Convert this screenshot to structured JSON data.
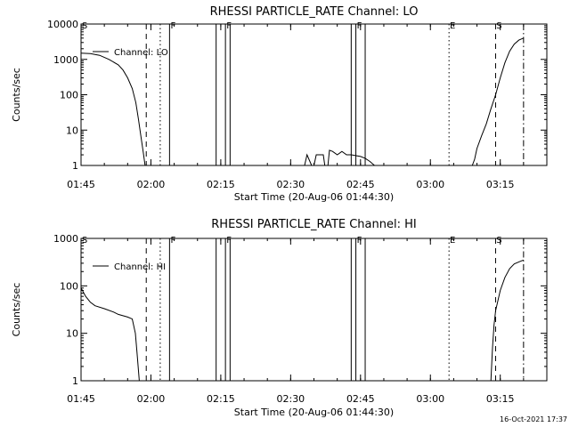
{
  "footer": {
    "timestamp": "16-Oct-2021 17:37"
  },
  "chart_data": [
    {
      "type": "line",
      "title": "RHESSI PARTICLE_RATE Channel: LO",
      "xlabel": "Start Time (20-Aug-06 01:44:30)",
      "ylabel": "Counts/sec",
      "yscale": "log",
      "ylim": [
        1,
        10000
      ],
      "xlim": [
        "01:45",
        "03:25"
      ],
      "xticks": [
        "01:45",
        "02:00",
        "02:15",
        "02:30",
        "02:45",
        "03:00",
        "03:15"
      ],
      "yticks": [
        "1",
        "10",
        "100",
        "1000",
        "10000"
      ],
      "legend": {
        "label": "Channel: LO",
        "placement": "top-left"
      },
      "events": [
        {
          "label": "S",
          "time": "01:45",
          "style": "dashdot"
        },
        {
          "label": "",
          "time": "01:59",
          "style": "dashed"
        },
        {
          "label": "",
          "time": "02:02",
          "style": "dotted"
        },
        {
          "label": "F",
          "time": "02:04",
          "style": "solid"
        },
        {
          "label": "",
          "time": "02:14",
          "style": "solid"
        },
        {
          "label": "F",
          "time": "02:16",
          "style": "solid"
        },
        {
          "label": "",
          "time": "02:17",
          "style": "solid"
        },
        {
          "label": "",
          "time": "02:43",
          "style": "solid"
        },
        {
          "label": "F",
          "time": "02:44",
          "style": "solid"
        },
        {
          "label": "",
          "time": "02:46",
          "style": "solid"
        },
        {
          "label": "E",
          "time": "03:04",
          "style": "dotted"
        },
        {
          "label": "S",
          "time": "03:14",
          "style": "dashed"
        },
        {
          "label": "",
          "time": "03:20",
          "style": "dashdot"
        }
      ],
      "series": [
        {
          "name": "Channel: LO",
          "segments": [
            [
              [
                "01:45",
                1500
              ],
              [
                "01:47",
                1450
              ],
              [
                "01:49",
                1300
              ],
              [
                "01:51",
                1000
              ],
              [
                "01:53",
                700
              ],
              [
                "01:54",
                500
              ],
              [
                "01:55",
                300
              ],
              [
                "01:56",
                150
              ],
              [
                "01:56:45",
                60
              ],
              [
                "01:57:20",
                20
              ],
              [
                "01:57:50",
                7
              ],
              [
                "01:58:20",
                2.5
              ],
              [
                "01:58:45",
                1
              ]
            ],
            [
              [
                "02:33",
                1
              ],
              [
                "02:33:30",
                2
              ],
              [
                "02:34:30",
                1
              ]
            ],
            [
              [
                "02:35",
                1
              ],
              [
                "02:35:30",
                2
              ],
              [
                "02:37",
                2
              ],
              [
                "02:37:20",
                1
              ]
            ],
            [
              [
                "02:38",
                1
              ],
              [
                "02:38:20",
                2.7
              ],
              [
                "02:39",
                2.5
              ],
              [
                "02:40",
                2
              ],
              [
                "02:41",
                2.5
              ],
              [
                "02:42",
                2
              ],
              [
                "02:43",
                2
              ],
              [
                "02:45",
                1.8
              ],
              [
                "02:46",
                1.6
              ],
              [
                "02:47",
                1.3
              ],
              [
                "02:48",
                1
              ]
            ],
            [
              [
                "03:09",
                1
              ],
              [
                "03:09:30",
                1.5
              ],
              [
                "03:10",
                3
              ],
              [
                "03:11",
                7
              ],
              [
                "03:12",
                15
              ],
              [
                "03:13",
                40
              ],
              [
                "03:14",
                100
              ],
              [
                "03:15",
                300
              ],
              [
                "03:16",
                800
              ],
              [
                "03:17",
                1700
              ],
              [
                "03:18",
                2700
              ],
              [
                "03:19",
                3500
              ],
              [
                "03:20",
                4000
              ]
            ]
          ]
        }
      ]
    },
    {
      "type": "line",
      "title": "RHESSI PARTICLE_RATE Channel: HI",
      "xlabel": "Start Time (20-Aug-06 01:44:30)",
      "ylabel": "Counts/sec",
      "yscale": "log",
      "ylim": [
        1,
        1000
      ],
      "xlim": [
        "01:45",
        "03:25"
      ],
      "xticks": [
        "01:45",
        "02:00",
        "02:15",
        "02:30",
        "02:45",
        "03:00",
        "03:15"
      ],
      "yticks": [
        "1",
        "10",
        "100",
        "1000"
      ],
      "legend": {
        "label": "Channel: HI",
        "placement": "top-left"
      },
      "events": [
        {
          "label": "S",
          "time": "01:45",
          "style": "dashdot"
        },
        {
          "label": "",
          "time": "01:59",
          "style": "dashed"
        },
        {
          "label": "",
          "time": "02:02",
          "style": "dotted"
        },
        {
          "label": "F",
          "time": "02:04",
          "style": "solid"
        },
        {
          "label": "",
          "time": "02:14",
          "style": "solid"
        },
        {
          "label": "F",
          "time": "02:16",
          "style": "solid"
        },
        {
          "label": "",
          "time": "02:17",
          "style": "solid"
        },
        {
          "label": "",
          "time": "02:43",
          "style": "solid"
        },
        {
          "label": "F",
          "time": "02:44",
          "style": "solid"
        },
        {
          "label": "",
          "time": "02:46",
          "style": "solid"
        },
        {
          "label": "E",
          "time": "03:04",
          "style": "dotted"
        },
        {
          "label": "S",
          "time": "03:14",
          "style": "dashed"
        },
        {
          "label": "",
          "time": "03:20",
          "style": "dashdot"
        }
      ],
      "series": [
        {
          "name": "Channel: HI",
          "segments": [
            [
              [
                "01:45",
                90
              ],
              [
                "01:46",
                60
              ],
              [
                "01:47",
                45
              ],
              [
                "01:48",
                38
              ],
              [
                "01:50",
                33
              ],
              [
                "01:52",
                28
              ],
              [
                "01:53",
                25
              ],
              [
                "01:55",
                22
              ],
              [
                "01:56",
                20
              ],
              [
                "01:56:40",
                10
              ],
              [
                "01:57",
                4
              ],
              [
                "01:57:30",
                1
              ]
            ],
            [
              [
                "03:13",
                1
              ],
              [
                "03:13:20",
                5
              ],
              [
                "03:13:40",
                15
              ],
              [
                "03:14",
                30
              ],
              [
                "03:15",
                80
              ],
              [
                "03:16",
                150
              ],
              [
                "03:17",
                230
              ],
              [
                "03:18",
                290
              ],
              [
                "03:19",
                320
              ],
              [
                "03:20",
                350
              ]
            ]
          ]
        }
      ]
    }
  ]
}
